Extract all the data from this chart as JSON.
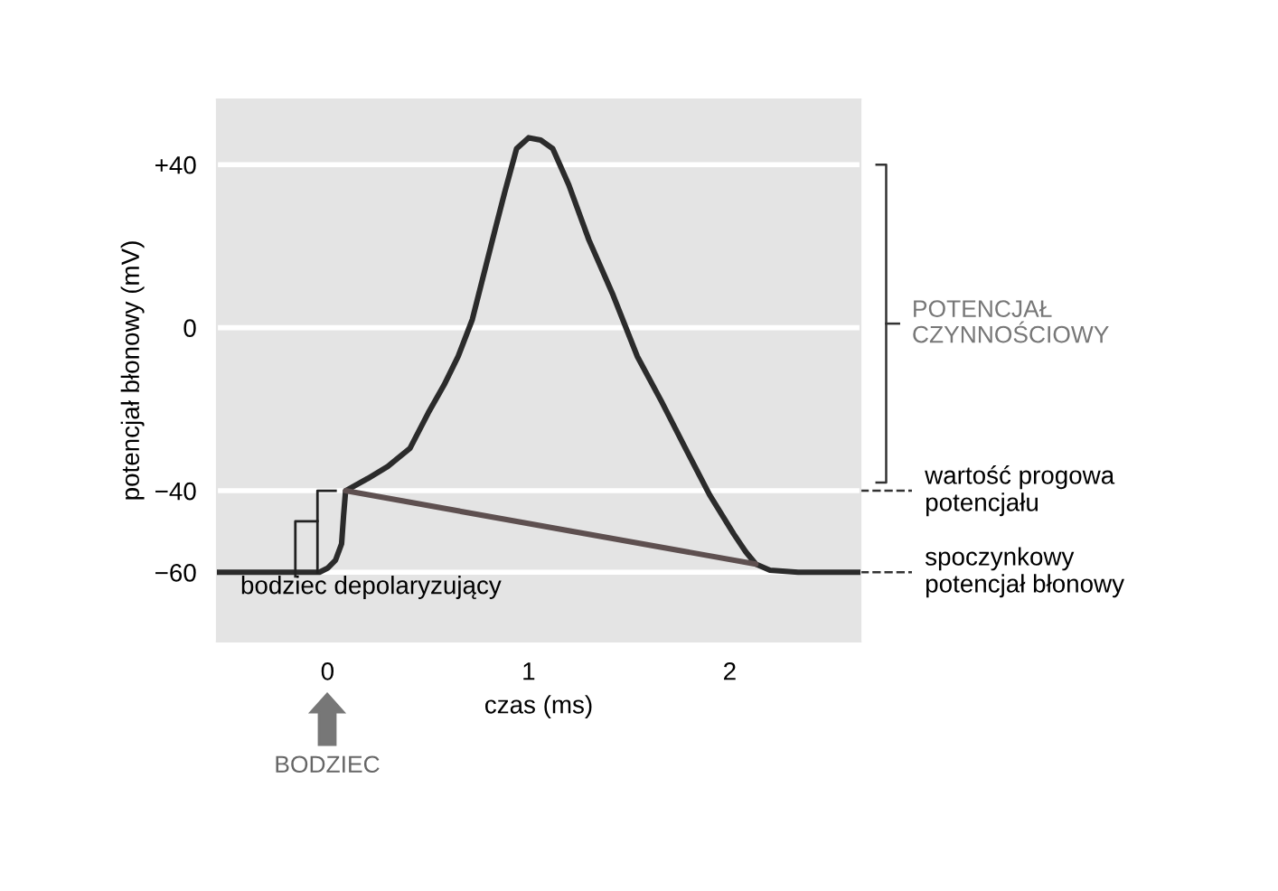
{
  "chart_data": {
    "type": "line",
    "xlabel": "czas (ms)",
    "ylabel": "potencjał błonowy (mV)",
    "xlim": [
      -0.55,
      2.65
    ],
    "ylim": [
      -77,
      56
    ],
    "xticks": [
      0,
      1,
      2
    ],
    "yticks": [
      {
        "value": 40,
        "label": "+40"
      },
      0,
      {
        "value": -40,
        "label": "−40"
      },
      {
        "value": -60,
        "label": "−60"
      }
    ],
    "grid": "y",
    "legend": false,
    "marker": "none",
    "line_style": "solid",
    "series": [
      {
        "color": "#2b2b2b",
        "x": [
          -0.55,
          -0.3,
          -0.04,
          0.0,
          0.04,
          0.07,
          0.08,
          0.09,
          0.2,
          0.3,
          0.41,
          0.5,
          0.58,
          0.65,
          0.72,
          0.82,
          0.88,
          0.94,
          1.0,
          1.06,
          1.12,
          1.2,
          1.3,
          1.42,
          1.54,
          1.66,
          1.78,
          1.9,
          2.02,
          2.08,
          2.13,
          2.2,
          2.34,
          2.65
        ],
        "values": [
          -60,
          -60,
          -60,
          -59,
          -57,
          -53,
          -46,
          -40,
          -37,
          -34,
          -29.6,
          -21,
          -14,
          -7,
          2,
          21.5,
          33,
          43.9,
          46.6,
          46,
          43.9,
          35,
          21.5,
          8,
          -7,
          -18,
          -29.6,
          -41,
          -50.6,
          -55,
          -58,
          -59.5,
          -60,
          -60
        ]
      },
      {
        "color": "#5e5050",
        "x": [
          0.09,
          2.13
        ],
        "values": [
          -40,
          -58
        ]
      }
    ],
    "ref_lines": [
      {
        "axis": "y",
        "value": -40,
        "label": "wartość progowa\npotencjału",
        "line_style": "dashed"
      },
      {
        "axis": "y",
        "value": -60,
        "label": "spoczynkowy\npotencjał błonowy",
        "line_style": "dashed"
      }
    ],
    "annotations": [
      "bodziec depolaryzujący",
      "BODZIEC",
      "POTENCJAŁ\nCZYNNOŚCIOWY"
    ]
  }
}
